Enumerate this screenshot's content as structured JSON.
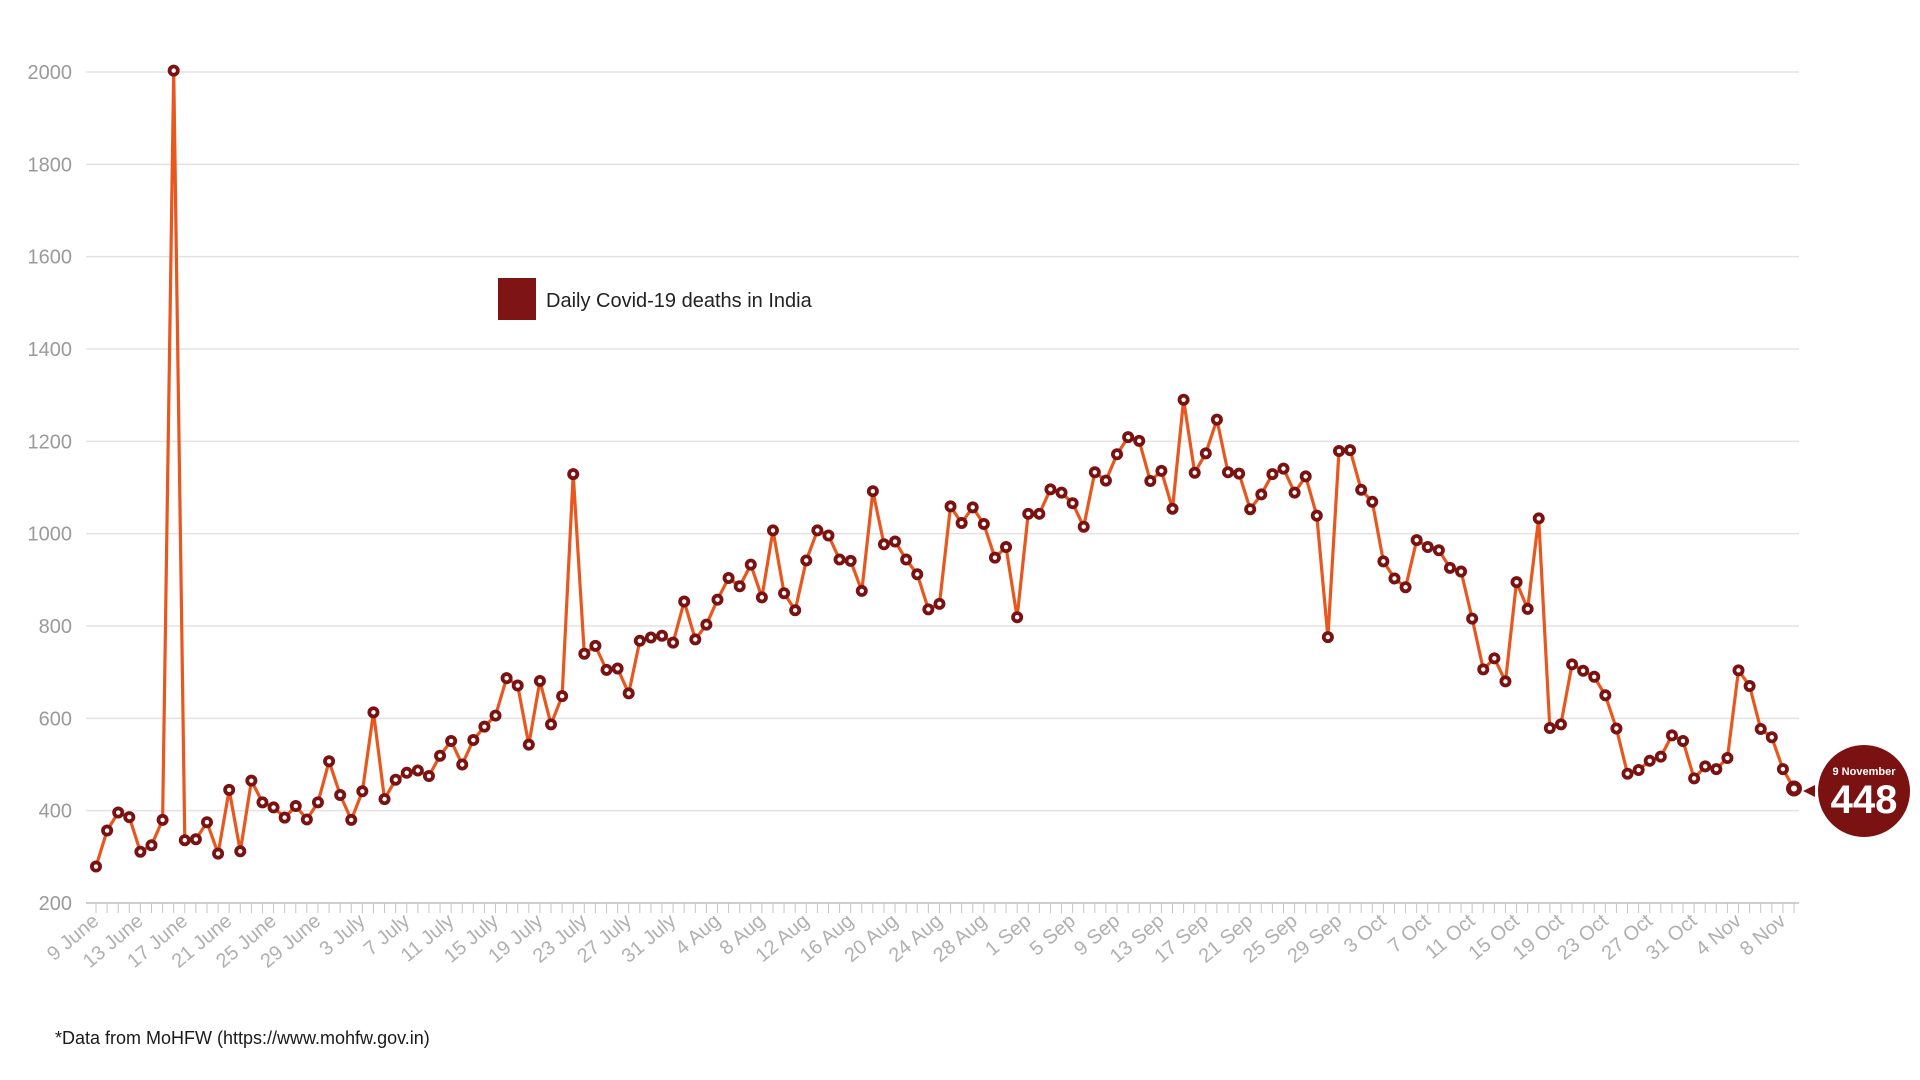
{
  "chart_data": {
    "type": "line",
    "title": "",
    "xlabel": "",
    "ylabel": "",
    "ylim": [
      200,
      2000
    ],
    "y_ticks": [
      200,
      400,
      600,
      800,
      1000,
      1200,
      1400,
      1600,
      1800,
      2000
    ],
    "x_tick_labels": [
      "9 June",
      "13 June",
      "17 June",
      "21 June",
      "25 June",
      "29 June",
      "3 July",
      "7 July",
      "11 July",
      "15 July",
      "19 July",
      "23 July",
      "27 July",
      "31 July",
      "4 Aug",
      "8 Aug",
      "12 Aug",
      "16 Aug",
      "20 Aug",
      "24 Aug",
      "28 Aug",
      "1 Sep",
      "5 Sep",
      "9 Sep",
      "13 Sep",
      "17 Sep",
      "21 Sep",
      "25 Sep",
      "29 Sep",
      "3 Oct",
      "7 Oct",
      "11 Oct",
      "15 Oct",
      "19 Oct",
      "23 Oct",
      "27 Oct",
      "31 Oct",
      "4 Nov",
      "8 Nov"
    ],
    "x_start": "9 June",
    "x_end": "9 November",
    "grid": true,
    "legend_position": "top-left",
    "series": [
      {
        "name": "Daily Covid-19 deaths in India",
        "color": "#e8571e",
        "marker_color": "#7a1212",
        "values": [
          279,
          357,
          396,
          386,
          311,
          325,
          380,
          2003,
          336,
          338,
          375,
          307,
          445,
          312,
          465,
          418,
          407,
          385,
          410,
          381,
          418,
          507,
          434,
          380,
          442,
          613,
          425,
          467,
          482,
          487,
          475,
          519,
          551,
          500,
          553,
          582,
          606,
          687,
          671,
          543,
          681,
          587,
          648,
          1129,
          740,
          757,
          705,
          708,
          654,
          768,
          775,
          779,
          764,
          853,
          771,
          803,
          857,
          904,
          886,
          933,
          862,
          1007,
          871,
          834,
          942,
          1007,
          996,
          944,
          941,
          876,
          1092,
          977,
          983,
          944,
          912,
          836,
          848,
          1059,
          1023,
          1057,
          1021,
          948,
          971,
          819,
          1043,
          1043,
          1096,
          1089,
          1066,
          1015,
          1133,
          1115,
          1172,
          1209,
          1201,
          1114,
          1136,
          1054,
          1290,
          1132,
          1174,
          1247,
          1133,
          1130,
          1053,
          1085,
          1129,
          1141,
          1089,
          1124,
          1039,
          776,
          1179,
          1181,
          1095,
          1069,
          940,
          903,
          884,
          986,
          971,
          964,
          926,
          918,
          816,
          706,
          730,
          680,
          895,
          837,
          1033,
          579,
          587,
          717,
          703,
          690,
          650,
          578,
          480,
          488,
          508,
          517,
          563,
          551,
          470,
          496,
          490,
          514,
          704,
          670,
          577,
          559,
          490,
          448
        ]
      }
    ],
    "callout": {
      "label": "9 November",
      "value": "448",
      "color": "#7a1212"
    },
    "footnote": "*Data from MoHFW (https://www.mohfw.gov.in)"
  }
}
